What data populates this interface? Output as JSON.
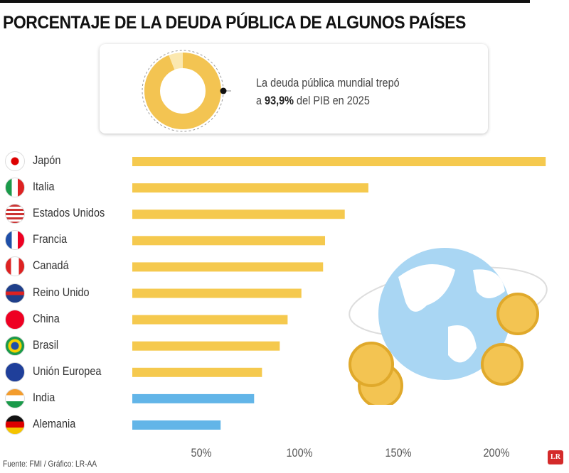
{
  "title": "PORCENTAJE DE LA DEUDA PÚBLICA DE ALGUNOS PAÍSES",
  "callout": {
    "line1": "La deuda pública mundial trepó",
    "prefix": "a ",
    "value": "93,9%",
    "suffix": " del PIB en 2025",
    "donut_value_percent": 93.9
  },
  "source": "Fuente: FMI / Gráfico: LR-AA",
  "logo": "LR",
  "colors": {
    "bar_main": "#f5c94e",
    "bar_low": "#62b5e8",
    "donut": "#f3c452",
    "donut_rest": "#fbe8b0"
  },
  "chart_data": {
    "type": "bar",
    "orientation": "horizontal",
    "categories": [
      "Japón",
      "Italia",
      "Estados Unidos",
      "Francia",
      "Canadá",
      "Reino Unido",
      "China",
      "Brasil",
      "Unión Europea",
      "India",
      "Alemania"
    ],
    "values": [
      225,
      135,
      123,
      113,
      112,
      101,
      94,
      90,
      81,
      77,
      60
    ],
    "bar_colors": [
      "yellow",
      "yellow",
      "yellow",
      "yellow",
      "yellow",
      "yellow",
      "yellow",
      "yellow",
      "yellow",
      "blue",
      "blue"
    ],
    "flag_icons": [
      "japan-flag",
      "italy-flag",
      "usa-flag",
      "france-flag",
      "canada-flag",
      "uk-flag",
      "china-flag",
      "brazil-flag",
      "eu-flag",
      "india-flag",
      "germany-flag"
    ],
    "xticks": [
      "50%",
      "100%",
      "150%",
      "200%"
    ],
    "xtick_values": [
      50,
      100,
      150,
      200
    ],
    "xlim": [
      0,
      230
    ],
    "grid": false
  }
}
